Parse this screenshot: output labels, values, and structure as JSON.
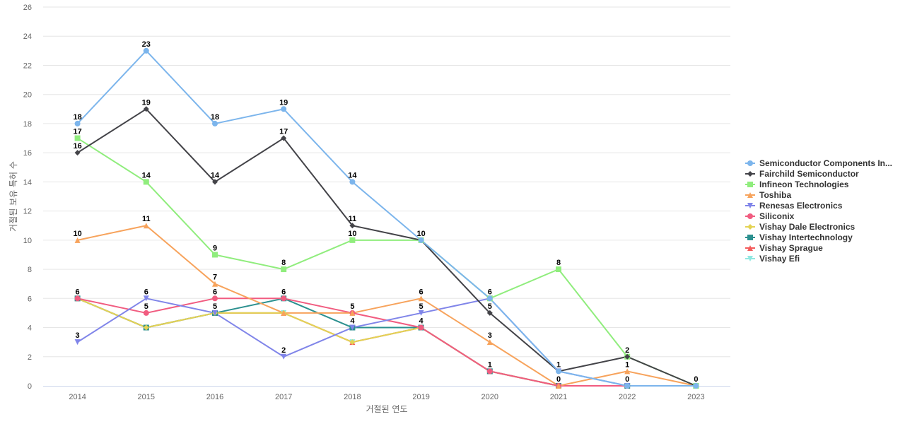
{
  "chart_data": {
    "type": "line",
    "xlabel": "거절된 연도",
    "ylabel": "거절된 보유 특허 수",
    "ylim": [
      0,
      26
    ],
    "yticks": [
      0,
      2,
      4,
      6,
      8,
      10,
      12,
      14,
      16,
      18,
      20,
      22,
      24,
      26
    ],
    "grid": true,
    "legend_position": "right",
    "categories": [
      "2014",
      "2015",
      "2016",
      "2017",
      "2018",
      "2019",
      "2020",
      "2021",
      "2022",
      "2023"
    ],
    "series": [
      {
        "name": "Semiconductor Components In...",
        "color": "#7cb5ec",
        "marker": "circle",
        "values": [
          18,
          23,
          18,
          19,
          14,
          10,
          6,
          1,
          0,
          0
        ],
        "labels": [
          true,
          true,
          true,
          true,
          true,
          false,
          false,
          false,
          false,
          false
        ]
      },
      {
        "name": "Fairchild Semiconductor",
        "color": "#434348",
        "marker": "diamond",
        "values": [
          16,
          19,
          14,
          17,
          11,
          10,
          5,
          1,
          2,
          0
        ],
        "labels": [
          true,
          true,
          true,
          true,
          true,
          true,
          true,
          true,
          true,
          true
        ]
      },
      {
        "name": "Infineon Technologies",
        "color": "#90ed7d",
        "marker": "square",
        "values": [
          17,
          14,
          9,
          8,
          10,
          10,
          6,
          8,
          2,
          0
        ],
        "labels": [
          true,
          true,
          true,
          true,
          true,
          false,
          true,
          true,
          false,
          false
        ]
      },
      {
        "name": "Toshiba",
        "color": "#f7a35c",
        "marker": "triangle",
        "values": [
          10,
          11,
          7,
          5,
          5,
          6,
          3,
          0,
          1,
          0
        ],
        "labels": [
          true,
          true,
          true,
          false,
          false,
          true,
          true,
          true,
          true,
          false
        ]
      },
      {
        "name": "Renesas Electronics",
        "color": "#8085e9",
        "marker": "triangle-down",
        "values": [
          3,
          6,
          5,
          2,
          4,
          5,
          6,
          1,
          0,
          0
        ],
        "labels": [
          true,
          true,
          true,
          true,
          true,
          true,
          false,
          false,
          true,
          false
        ]
      },
      {
        "name": "Siliconix",
        "color": "#f15c80",
        "marker": "circle",
        "values": [
          6,
          5,
          6,
          6,
          5,
          4,
          1,
          0,
          0,
          0
        ],
        "labels": [
          true,
          true,
          true,
          true,
          true,
          true,
          true,
          false,
          false,
          false
        ]
      },
      {
        "name": "Vishay Dale Electronics",
        "color": "#e4d354",
        "marker": "diamond",
        "values": [
          6,
          4,
          5,
          5,
          3,
          4,
          1,
          0,
          0,
          0
        ],
        "labels": [
          false,
          false,
          false,
          false,
          false,
          false,
          false,
          false,
          false,
          false
        ]
      },
      {
        "name": "Vishay Intertechnology",
        "color": "#2b908f",
        "marker": "square",
        "values": [
          6,
          4,
          5,
          6,
          4,
          4,
          1,
          0,
          0,
          0
        ],
        "labels": [
          false,
          false,
          false,
          false,
          false,
          false,
          false,
          false,
          false,
          false
        ]
      },
      {
        "name": "Vishay Sprague",
        "color": "#f45b5b",
        "marker": "triangle",
        "values": [
          6,
          4,
          5,
          5,
          3,
          4,
          1,
          0,
          0,
          0
        ],
        "labels": [
          false,
          false,
          false,
          false,
          false,
          false,
          false,
          false,
          false,
          false
        ]
      },
      {
        "name": "Vishay Efi",
        "color": "#91e8e1",
        "marker": "triangle-down",
        "values": [
          6,
          4,
          5,
          5,
          3,
          4,
          1,
          0,
          0,
          0
        ],
        "labels": [
          false,
          false,
          false,
          false,
          false,
          false,
          false,
          false,
          false,
          false
        ]
      }
    ]
  }
}
